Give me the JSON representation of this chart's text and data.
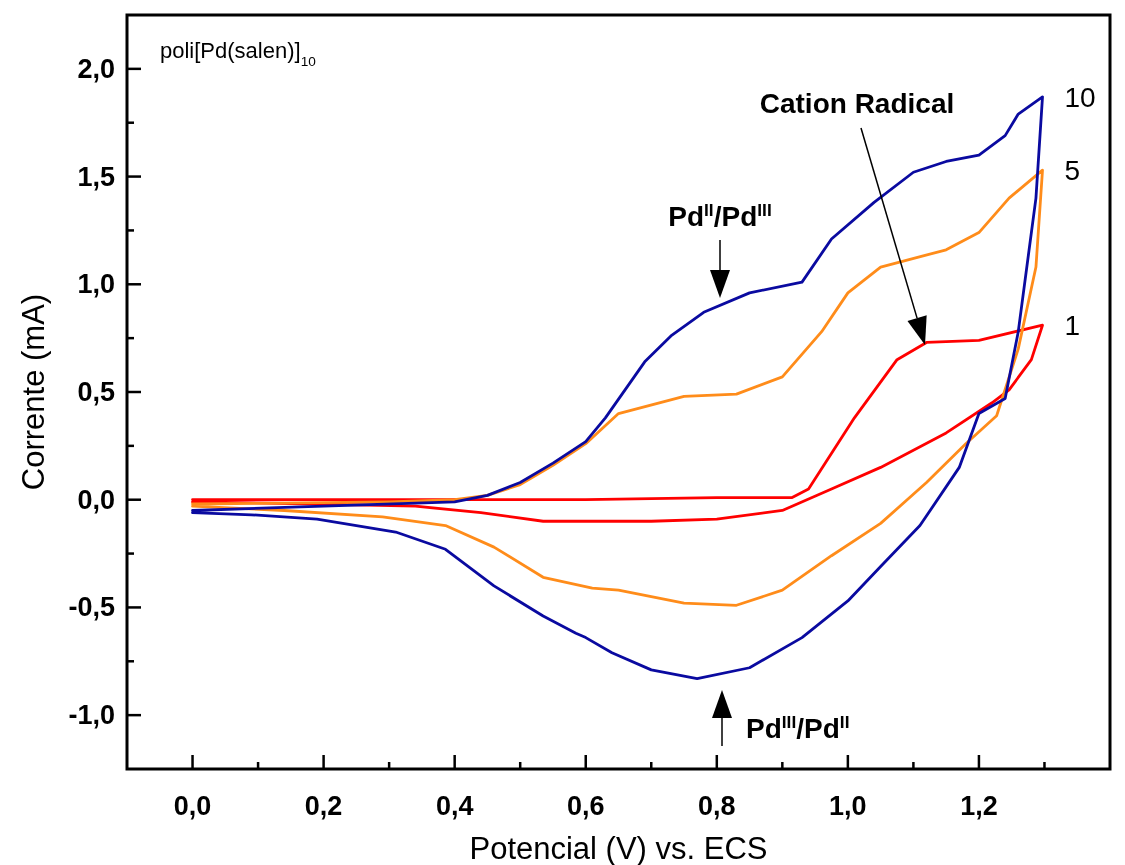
{
  "chart_data": {
    "type": "line",
    "xlabel": "Potencial (V) vs. ECS",
    "ylabel": "Corrente (mA)",
    "xlim": [
      -0.1,
      1.4
    ],
    "ylim": [
      -1.25,
      2.25
    ],
    "xticks": [
      {
        "value": 0,
        "label": "0,0"
      },
      {
        "value": 0.1,
        "label": null
      },
      {
        "value": 0.2,
        "label": "0,2"
      },
      {
        "value": 0.3,
        "label": null
      },
      {
        "value": 0.4,
        "label": "0,4"
      },
      {
        "value": 0.5,
        "label": null
      },
      {
        "value": 0.6,
        "label": "0,6"
      },
      {
        "value": 0.7,
        "label": null
      },
      {
        "value": 0.8,
        "label": "0,8"
      },
      {
        "value": 0.9,
        "label": null
      },
      {
        "value": 1.0,
        "label": "1,0"
      },
      {
        "value": 1.1,
        "label": null
      },
      {
        "value": 1.2,
        "label": "1,2"
      },
      {
        "value": 1.3,
        "label": null
      }
    ],
    "yticks": [
      {
        "value": -1.0,
        "label": "-1,0"
      },
      {
        "value": -0.75,
        "label": null
      },
      {
        "value": -0.5,
        "label": "-0,5"
      },
      {
        "value": -0.25,
        "label": null
      },
      {
        "value": 0,
        "label": "0,0"
      },
      {
        "value": 0.25,
        "label": null
      },
      {
        "value": 0.5,
        "label": "0,5"
      },
      {
        "value": 0.75,
        "label": null
      },
      {
        "value": 1.0,
        "label": "1,0"
      },
      {
        "value": 1.25,
        "label": null
      },
      {
        "value": 1.5,
        "label": "1,5"
      },
      {
        "value": 1.75,
        "label": null
      },
      {
        "value": 2.0,
        "label": "2,0"
      }
    ],
    "grid": false,
    "marker": "none",
    "line_style": "solid",
    "series": [
      {
        "name": "1",
        "color": "#ff0000",
        "x": [
          0,
          0.19,
          0.4,
          0.6,
          0.8,
          0.915,
          0.94,
          1.01,
          1.075,
          1.12,
          1.2,
          1.297,
          1.28,
          1.246,
          1.22,
          1.15,
          1.05,
          0.975,
          0.9,
          0.8,
          0.7,
          0.535,
          0.44,
          0.34,
          0.19,
          0
        ],
        "values": [
          0,
          0,
          0,
          0,
          0.01,
          0.01,
          0.05,
          0.38,
          0.65,
          0.73,
          0.74,
          0.81,
          0.65,
          0.51,
          0.45,
          0.31,
          0.15,
          0.05,
          -0.05,
          -0.09,
          -0.1,
          -0.1,
          -0.06,
          -0.03,
          -0.02,
          -0.01
        ]
      },
      {
        "name": "5",
        "color": "#ff8c1a",
        "x": [
          0,
          0.3,
          0.4,
          0.45,
          0.5,
          0.55,
          0.6,
          0.65,
          0.75,
          0.83,
          0.9,
          0.96,
          1.0,
          1.05,
          1.15,
          1.2,
          1.246,
          1.297,
          1.287,
          1.26,
          1.227,
          1.18,
          1.12,
          1.05,
          0.975,
          0.9,
          0.83,
          0.75,
          0.65,
          0.61,
          0.535,
          0.46,
          0.386,
          0.29,
          0.14,
          0
        ],
        "values": [
          -0.02,
          -0.01,
          0,
          0.02,
          0.07,
          0.16,
          0.26,
          0.4,
          0.48,
          0.49,
          0.57,
          0.78,
          0.96,
          1.08,
          1.16,
          1.24,
          1.4,
          1.53,
          1.08,
          0.7,
          0.39,
          0.26,
          0.08,
          -0.11,
          -0.26,
          -0.42,
          -0.49,
          -0.48,
          -0.42,
          -0.41,
          -0.36,
          -0.22,
          -0.12,
          -0.08,
          -0.05,
          -0.03
        ]
      },
      {
        "name": "10",
        "color": "#0a0aa0",
        "x": [
          0,
          0.2,
          0.4,
          0.45,
          0.5,
          0.55,
          0.6,
          0.63,
          0.69,
          0.73,
          0.78,
          0.85,
          0.93,
          0.975,
          1.04,
          1.1,
          1.15,
          1.2,
          1.24,
          1.26,
          1.297,
          1.287,
          1.26,
          1.24,
          1.2,
          1.17,
          1.11,
          1.05,
          1.0,
          0.93,
          0.85,
          0.77,
          0.7,
          0.64,
          0.6,
          0.585,
          0.535,
          0.46,
          0.386,
          0.31,
          0.19,
          0.09,
          0
        ],
        "values": [
          -0.05,
          -0.03,
          -0.01,
          0.02,
          0.08,
          0.17,
          0.27,
          0.38,
          0.64,
          0.76,
          0.87,
          0.96,
          1.01,
          1.21,
          1.38,
          1.52,
          1.57,
          1.6,
          1.69,
          1.79,
          1.87,
          1.4,
          0.78,
          0.47,
          0.4,
          0.15,
          -0.12,
          -0.31,
          -0.47,
          -0.64,
          -0.78,
          -0.83,
          -0.79,
          -0.71,
          -0.64,
          -0.62,
          -0.54,
          -0.4,
          -0.23,
          -0.15,
          -0.09,
          -0.07,
          -0.06
        ]
      }
    ],
    "annotations": [
      "poli[Pd(salen)]$_{10}$",
      "Pd$^{II}$/Pd$^{III}$",
      "Cation Radical",
      "Pd$^{III}$/Pd$^{II}$"
    ]
  }
}
